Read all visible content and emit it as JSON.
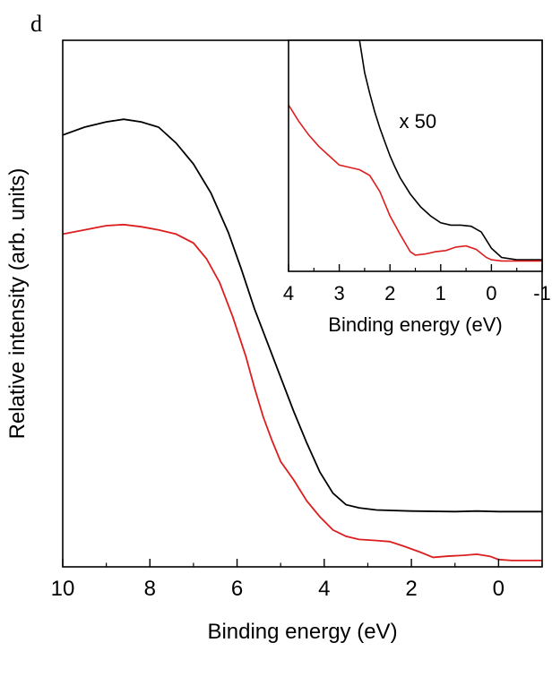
{
  "panel_label": "d",
  "chart_data": [
    {
      "type": "line",
      "xlabel": "Binding energy (eV)",
      "ylabel": "Relative intensity (arb. units)",
      "xlim": [
        10,
        -1
      ],
      "ylim": [
        0,
        1
      ],
      "x_ticks": [
        10,
        8,
        6,
        4,
        2,
        0
      ],
      "x_tick_labels": [
        "10",
        "8",
        "6",
        "4",
        "2",
        "0"
      ],
      "y_tick_labels": [],
      "grid": false,
      "series": [
        {
          "color": "#000000",
          "x": [
            10,
            9.5,
            9,
            8.6,
            8.2,
            7.8,
            7.4,
            7,
            6.6,
            6.2,
            5.9,
            5.6,
            5.3,
            5,
            4.7,
            4.4,
            4.1,
            3.8,
            3.5,
            3.2,
            2.8,
            2,
            1,
            0.5,
            0,
            -0.5,
            -1
          ],
          "y": [
            0.82,
            0.835,
            0.845,
            0.85,
            0.845,
            0.835,
            0.805,
            0.765,
            0.71,
            0.635,
            0.565,
            0.49,
            0.425,
            0.36,
            0.295,
            0.235,
            0.18,
            0.14,
            0.118,
            0.112,
            0.108,
            0.106,
            0.105,
            0.106,
            0.105,
            0.105,
            0.105
          ]
        },
        {
          "color": "#dd1e1e",
          "x": [
            10,
            9.5,
            9,
            8.6,
            8.2,
            7.8,
            7.4,
            7,
            6.7,
            6.4,
            6.1,
            5.8,
            5.6,
            5.4,
            5.2,
            5,
            4.7,
            4.4,
            4.1,
            3.8,
            3.5,
            3.2,
            2.8,
            2.5,
            2.2,
            1.8,
            1.5,
            1.2,
            0.8,
            0.5,
            0.2,
            0,
            -0.3,
            -1
          ],
          "y": [
            0.632,
            0.64,
            0.648,
            0.65,
            0.646,
            0.64,
            0.632,
            0.615,
            0.585,
            0.54,
            0.475,
            0.4,
            0.34,
            0.285,
            0.24,
            0.2,
            0.165,
            0.125,
            0.095,
            0.07,
            0.058,
            0.052,
            0.05,
            0.048,
            0.04,
            0.028,
            0.018,
            0.02,
            0.022,
            0.024,
            0.02,
            0.014,
            0.012,
            0.012
          ]
        }
      ]
    },
    {
      "type": "line",
      "inset": true,
      "xlabel": "Binding energy (eV)",
      "xlim": [
        4,
        -1
      ],
      "ylim": [
        0,
        1
      ],
      "x_ticks": [
        4,
        3,
        2,
        1,
        0,
        -1
      ],
      "x_tick_labels": [
        "4",
        "3",
        "2",
        "1",
        "0",
        "-1"
      ],
      "annotation": "x 50",
      "grid": false,
      "series": [
        {
          "color": "#000000",
          "x": [
            2.6,
            2.55,
            2.5,
            2.4,
            2.3,
            2.2,
            2.1,
            2.0,
            1.9,
            1.8,
            1.6,
            1.4,
            1.2,
            1.0,
            0.8,
            0.6,
            0.4,
            0.2,
            0.0,
            -0.2,
            -0.5,
            -1
          ],
          "y": [
            1.0,
            0.93,
            0.86,
            0.77,
            0.69,
            0.62,
            0.56,
            0.5,
            0.45,
            0.405,
            0.335,
            0.28,
            0.24,
            0.21,
            0.2,
            0.2,
            0.195,
            0.17,
            0.1,
            0.06,
            0.05,
            0.05
          ]
        },
        {
          "color": "#dd1e1e",
          "x": [
            4,
            3.8,
            3.6,
            3.4,
            3.2,
            3.0,
            2.8,
            2.6,
            2.4,
            2.2,
            2.0,
            1.8,
            1.6,
            1.5,
            1.3,
            1.1,
            0.9,
            0.7,
            0.5,
            0.3,
            0.1,
            0.0,
            -0.2,
            -0.5,
            -1
          ],
          "y": [
            0.72,
            0.65,
            0.59,
            0.54,
            0.5,
            0.46,
            0.45,
            0.44,
            0.415,
            0.345,
            0.24,
            0.16,
            0.085,
            0.07,
            0.075,
            0.085,
            0.09,
            0.105,
            0.11,
            0.095,
            0.06,
            0.05,
            0.045,
            0.045,
            0.045
          ]
        }
      ]
    }
  ]
}
